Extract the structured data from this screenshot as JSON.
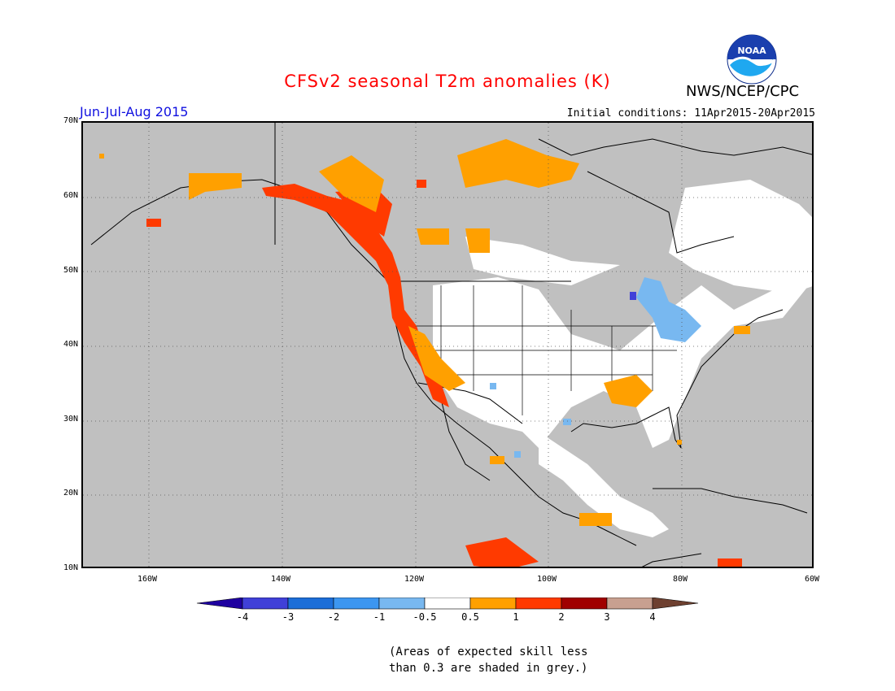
{
  "header": {
    "title": "CFSv2 seasonal T2m anomalies (K)",
    "period": "Jun-Jul-Aug 2015",
    "initial_conditions": "Initial conditions: 11Apr2015-20Apr2015",
    "agency": "NWS/NCEP/CPC",
    "logo_text": "NOAA"
  },
  "colors": {
    "title": "#ff0000",
    "period": "#1010e0",
    "skill_mask": "#c0c0c0",
    "neutral": "#ffffff"
  },
  "map": {
    "lat_labels": [
      "70N",
      "60N",
      "50N",
      "40N",
      "30N",
      "20N",
      "10N"
    ],
    "lon_labels": [
      "160W",
      "140W",
      "120W",
      "100W",
      "80W",
      "60W"
    ],
    "extent": {
      "lon": [
        -170,
        -60
      ],
      "lat": [
        10,
        70
      ]
    },
    "grid": "dotted",
    "regions": [
      {
        "name": "US West Coast / Pacific Northwest",
        "category": "1 to 2",
        "color": "#ff3a00"
      },
      {
        "name": "Southern Alaska coast",
        "category": "0.5 to 1",
        "color": "#ffa000"
      },
      {
        "name": "Great Lakes",
        "category": "-1 to -0.5",
        "color": "#78b8f0"
      },
      {
        "name": "Central and eastern US",
        "category": "-0.5 to 0.5",
        "color": "#ffffff"
      },
      {
        "name": "Ocean areas",
        "category": "skill less than 0.3",
        "color": "#c0c0c0"
      }
    ]
  },
  "colorbar": {
    "labels": [
      "-4",
      "-3",
      "-2",
      "-1",
      "-0.5",
      "0.5",
      "1",
      "2",
      "3",
      "4"
    ],
    "colors": [
      "#1e00a0",
      "#4040d8",
      "#1c6ed8",
      "#3c96f0",
      "#78b8f0",
      "#ffffff",
      "#ffa000",
      "#ff3a00",
      "#a00000",
      "#c8a090",
      "#6e4030"
    ]
  },
  "footnote": {
    "line1": "(Areas of expected skill less",
    "line2": "than 0.3 are shaded in grey.)"
  }
}
